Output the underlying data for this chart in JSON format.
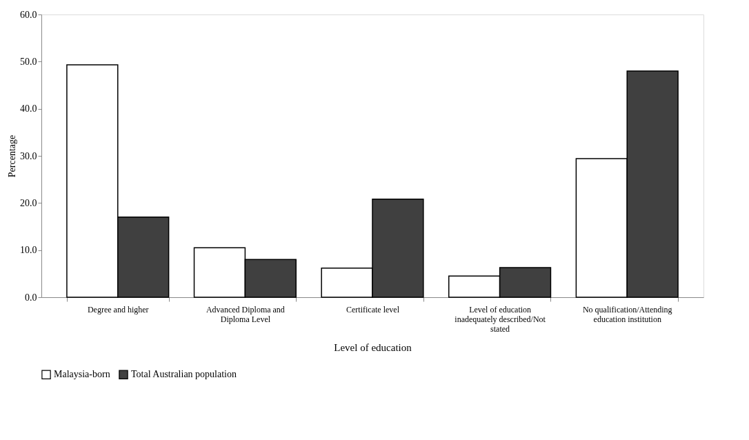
{
  "chart_data": {
    "type": "bar",
    "xlabel": "Level of education",
    "ylabel": "Percentage",
    "categories": [
      "Degree and higher",
      "Advanced Diploma and Diploma Level",
      "Certificate level",
      "Level of education inadequately described/Not stated",
      "No qualification/Attending education institution"
    ],
    "series": [
      {
        "name": "Malaysia-born",
        "color": "#ffffff",
        "values": [
          49.3,
          10.5,
          6.2,
          4.5,
          29.4
        ]
      },
      {
        "name": "Total Australian population",
        "color": "#404040",
        "values": [
          17.0,
          8.0,
          20.8,
          6.3,
          48.0
        ]
      }
    ],
    "ylim": [
      0,
      60
    ],
    "yticks": [
      {
        "value": 0,
        "label": "0.0"
      },
      {
        "value": 10,
        "label": "10.0"
      },
      {
        "value": 20,
        "label": "20.0"
      },
      {
        "value": 30,
        "label": "30.0"
      },
      {
        "value": 40,
        "label": "40.0"
      },
      {
        "value": 50,
        "label": "50.0"
      },
      {
        "value": 60,
        "label": "60.0"
      }
    ],
    "grid": false,
    "legend": "bottom"
  }
}
